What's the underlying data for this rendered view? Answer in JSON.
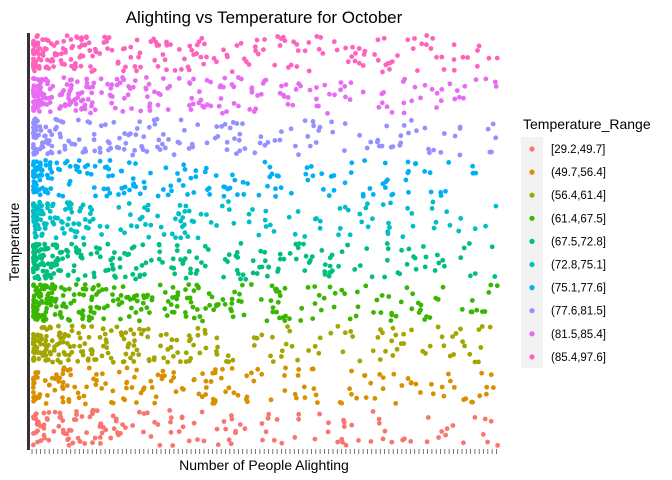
{
  "chart_data": {
    "type": "scatter",
    "title": "Alighting vs Temperature for October",
    "xlabel": "Number of People Alighting",
    "ylabel": "Temperature",
    "grid": false,
    "legend": {
      "title": "Temperature_Range",
      "placement": "right"
    },
    "xlim": [
      0,
      100
    ],
    "ylim": [
      0,
      10
    ],
    "series": [
      {
        "name": "[29.2,49.7]",
        "color": "#F8766D",
        "density": 1.0
      },
      {
        "name": "(49.7,56.4]",
        "color": "#D89000",
        "density": 1.1
      },
      {
        "name": "(56.4,61.4]",
        "color": "#A3A500",
        "density": 1.5
      },
      {
        "name": "(61.4,67.5]",
        "color": "#39B600",
        "density": 1.7
      },
      {
        "name": "(67.5,72.8]",
        "color": "#00BF7D",
        "density": 1.6
      },
      {
        "name": "(72.8,75.1]",
        "color": "#00BFC4",
        "density": 1.2
      },
      {
        "name": "(75.1,77.6]",
        "color": "#00B0F6",
        "density": 1.2
      },
      {
        "name": "(77.6,81.5]",
        "color": "#9590FF",
        "density": 1.2
      },
      {
        "name": "(81.5,85.4]",
        "color": "#E76BF3",
        "density": 1.5
      },
      {
        "name": "(85.4,97.6]",
        "color": "#FF62BC",
        "density": 1.5
      }
    ]
  }
}
